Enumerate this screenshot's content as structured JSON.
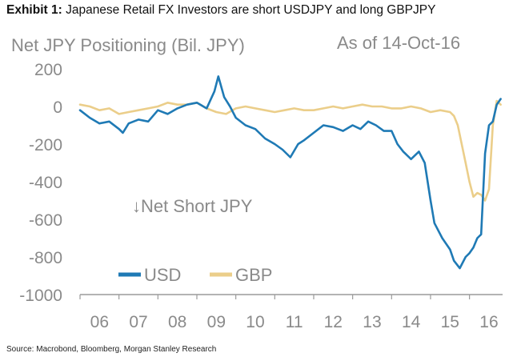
{
  "header": {
    "exhibit_label": "Exhibit 1:",
    "exhibit_title": "Japanese Retail FX Investors are short USDJPY and long GBPJPY"
  },
  "footer": {
    "source": "Source: Macrobond, Bloomberg, Morgan Stanley Research"
  },
  "colors": {
    "usd": "#1f7ab5",
    "gbp": "#ebce8a",
    "text": "#8a8a8a"
  },
  "chart_data": {
    "type": "line",
    "title": "Net JPY Positioning (Bil. JPY)",
    "subtitle": "As of 14-Oct-16",
    "annotation": "↓Net Short JPY",
    "legend_position": "bottom-left",
    "grid": false,
    "xlabel": "",
    "ylabel": "",
    "xlim": [
      2006.0,
      2016.85
    ],
    "ylim": [
      -1000,
      200
    ],
    "x_ticks": [
      "06",
      "07",
      "08",
      "09",
      "10",
      "11",
      "12",
      "13",
      "14",
      "15",
      "16"
    ],
    "y_ticks": [
      "200",
      "0",
      "-200",
      "-400",
      "-600",
      "-800",
      "-1000"
    ],
    "series": [
      {
        "name": "USD",
        "x": [
          2006.0,
          2006.25,
          2006.5,
          2006.75,
          2007.0,
          2007.1,
          2007.25,
          2007.5,
          2007.75,
          2008.0,
          2008.25,
          2008.5,
          2008.75,
          2009.0,
          2009.25,
          2009.45,
          2009.55,
          2009.7,
          2009.85,
          2010.0,
          2010.25,
          2010.5,
          2010.75,
          2011.0,
          2011.2,
          2011.4,
          2011.6,
          2011.75,
          2012.0,
          2012.25,
          2012.5,
          2012.75,
          2013.0,
          2013.2,
          2013.4,
          2013.6,
          2013.8,
          2014.0,
          2014.15,
          2014.3,
          2014.5,
          2014.7,
          2014.85,
          2015.0,
          2015.1,
          2015.3,
          2015.5,
          2015.6,
          2015.75,
          2015.9,
          2016.0,
          2016.1,
          2016.2,
          2016.3,
          2016.4,
          2016.5,
          2016.6,
          2016.7,
          2016.8
        ],
        "y": [
          -20,
          -60,
          -90,
          -80,
          -120,
          -140,
          -90,
          -70,
          -80,
          -20,
          -40,
          -10,
          10,
          20,
          -10,
          80,
          160,
          50,
          0,
          -60,
          -100,
          -120,
          -170,
          -200,
          -230,
          -270,
          -200,
          -180,
          -140,
          -100,
          -110,
          -130,
          -100,
          -120,
          -80,
          -100,
          -130,
          -130,
          -200,
          -240,
          -280,
          -240,
          -300,
          -500,
          -620,
          -700,
          -760,
          -820,
          -860,
          -800,
          -780,
          -750,
          -700,
          -680,
          -250,
          -100,
          -80,
          10,
          40
        ]
      },
      {
        "name": "GBP",
        "x": [
          2006.0,
          2006.25,
          2006.5,
          2006.75,
          2007.0,
          2007.25,
          2007.5,
          2007.75,
          2008.0,
          2008.25,
          2008.5,
          2008.75,
          2009.0,
          2009.25,
          2009.5,
          2009.75,
          2010.0,
          2010.25,
          2010.5,
          2010.75,
          2011.0,
          2011.25,
          2011.5,
          2011.75,
          2012.0,
          2012.25,
          2012.5,
          2012.75,
          2013.0,
          2013.25,
          2013.5,
          2013.75,
          2014.0,
          2014.25,
          2014.5,
          2014.75,
          2015.0,
          2015.25,
          2015.5,
          2015.6,
          2015.7,
          2015.8,
          2015.9,
          2016.0,
          2016.1,
          2016.2,
          2016.3,
          2016.4,
          2016.5,
          2016.6,
          2016.7,
          2016.8
        ],
        "y": [
          10,
          0,
          -20,
          -10,
          -40,
          -30,
          -20,
          -10,
          0,
          20,
          10,
          10,
          20,
          -10,
          -30,
          -40,
          -10,
          0,
          -10,
          -20,
          -30,
          -20,
          -10,
          -20,
          -20,
          -10,
          0,
          -10,
          0,
          10,
          0,
          0,
          -10,
          -10,
          0,
          -10,
          -30,
          -20,
          -30,
          -50,
          -100,
          -200,
          -300,
          -400,
          -480,
          -460,
          -470,
          -500,
          -440,
          -100,
          30,
          10
        ]
      }
    ]
  }
}
